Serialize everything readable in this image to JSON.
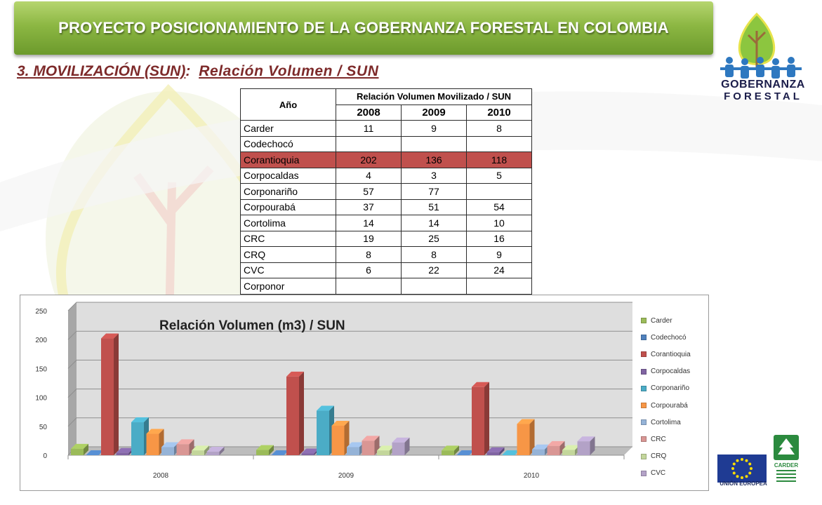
{
  "header": {
    "title": "PROYECTO POSICIONAMIENTO DE LA GOBERNANZA FORESTAL EN COLOMBIA",
    "section_label": "3. MOVILIZACIÓN (SUN)",
    "section_sep": ":",
    "section_title": "Relación Volumen / SUN"
  },
  "logos": {
    "gf_line1": "GOBERNANZA",
    "gf_line2": "FORESTAL",
    "eu": "UNIÓN EUROPEA",
    "carder": "CARDER"
  },
  "table": {
    "year_header": "Año",
    "group_header": "Relación Volumen Movilizado / SUN",
    "years": [
      "2008",
      "2009",
      "2010"
    ],
    "rows": [
      {
        "name": "Carder",
        "values": [
          "11",
          "9",
          "8"
        ]
      },
      {
        "name": "Codechocó",
        "values": [
          "",
          "",
          ""
        ]
      },
      {
        "name": "Corantioquia",
        "values": [
          "202",
          "136",
          "118"
        ],
        "highlight": true
      },
      {
        "name": "Corpocaldas",
        "values": [
          "4",
          "3",
          "5"
        ]
      },
      {
        "name": "Corponariño",
        "values": [
          "57",
          "77",
          ""
        ]
      },
      {
        "name": "Corpourabá",
        "values": [
          "37",
          "51",
          "54"
        ]
      },
      {
        "name": "Cortolima",
        "values": [
          "14",
          "14",
          "10"
        ]
      },
      {
        "name": "CRC",
        "values": [
          "19",
          "25",
          "16"
        ]
      },
      {
        "name": "CRQ",
        "values": [
          "8",
          "8",
          "9"
        ]
      },
      {
        "name": "CVC",
        "values": [
          "6",
          "22",
          "24"
        ]
      },
      {
        "name": "Corponor",
        "values": [
          "",
          "",
          ""
        ]
      }
    ],
    "highlight_color": "#c0504d"
  },
  "chart_data": {
    "type": "bar",
    "title": "Relación Volumen (m3) / SUN",
    "categories": [
      "2008",
      "2009",
      "2010"
    ],
    "ylim": [
      0,
      250
    ],
    "yticks": [
      "0",
      "50",
      "100",
      "150",
      "200",
      "250"
    ],
    "grid": true,
    "legend_position": "right",
    "series": [
      {
        "name": "Carder",
        "color": "#9bbb59",
        "values": [
          11,
          9,
          8
        ]
      },
      {
        "name": "Codechocó",
        "color": "#4f81bd",
        "values": [
          0,
          0,
          0
        ]
      },
      {
        "name": "Corantioquia",
        "color": "#c0504d",
        "values": [
          202,
          136,
          118
        ]
      },
      {
        "name": "Corpocaldas",
        "color": "#8064a2",
        "values": [
          4,
          3,
          5
        ]
      },
      {
        "name": "Corponariño",
        "color": "#4bacc6",
        "values": [
          57,
          77,
          0
        ]
      },
      {
        "name": "Corpourabá",
        "color": "#f79646",
        "values": [
          37,
          51,
          54
        ]
      },
      {
        "name": "Cortolima",
        "color": "#95b3d7",
        "values": [
          14,
          14,
          10
        ]
      },
      {
        "name": "CRC",
        "color": "#d99694",
        "values": [
          19,
          25,
          16
        ]
      },
      {
        "name": "CRQ",
        "color": "#c3d69b",
        "values": [
          8,
          8,
          9
        ]
      },
      {
        "name": "CVC",
        "color": "#b3a2c7",
        "values": [
          6,
          22,
          24
        ]
      }
    ]
  }
}
